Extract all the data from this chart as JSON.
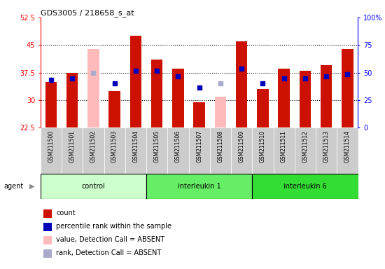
{
  "title": "GDS3005 / 218658_s_at",
  "samples": [
    "GSM211500",
    "GSM211501",
    "GSM211502",
    "GSM211503",
    "GSM211504",
    "GSM211505",
    "GSM211506",
    "GSM211507",
    "GSM211508",
    "GSM211509",
    "GSM211510",
    "GSM211511",
    "GSM211512",
    "GSM211513",
    "GSM211514"
  ],
  "count_values": [
    35.0,
    37.5,
    null,
    32.5,
    47.5,
    41.0,
    38.5,
    29.5,
    null,
    46.0,
    33.0,
    38.5,
    38.0,
    39.5,
    44.0
  ],
  "absent_count_values": [
    null,
    null,
    44.0,
    null,
    null,
    null,
    null,
    null,
    31.0,
    null,
    null,
    null,
    null,
    null,
    null
  ],
  "percentile_values": [
    35.5,
    36.0,
    null,
    34.5,
    38.0,
    38.0,
    36.5,
    33.5,
    null,
    38.5,
    34.5,
    36.0,
    36.0,
    36.5,
    37.0
  ],
  "absent_rank_values": [
    null,
    null,
    37.5,
    null,
    null,
    null,
    null,
    null,
    34.5,
    null,
    null,
    null,
    null,
    null,
    null
  ],
  "groups": [
    {
      "label": "control",
      "start": 0,
      "end": 5,
      "color": "#ccffcc"
    },
    {
      "label": "interleukin 1",
      "start": 5,
      "end": 10,
      "color": "#66ee66"
    },
    {
      "label": "interleukin 6",
      "start": 10,
      "end": 15,
      "color": "#33dd33"
    }
  ],
  "ylim": [
    22.5,
    52.5
  ],
  "yticks": [
    22.5,
    30,
    37.5,
    45,
    52.5
  ],
  "ytick_labels": [
    "22.5",
    "30",
    "37.5",
    "45",
    "52.5"
  ],
  "y2ticks_labels": [
    "0",
    "25",
    "50",
    "75",
    "100%"
  ],
  "y2tick_positions": [
    22.5,
    30,
    37.5,
    45,
    52.5
  ],
  "bar_color_red": "#cc1100",
  "bar_color_pink": "#ffbbbb",
  "dot_color_blue": "#0000bb",
  "dot_color_lightblue": "#aaaacc",
  "bar_width": 0.55,
  "dot_size": 20,
  "ticklabel_bg": "#cccccc",
  "plot_bg": "#ffffff"
}
